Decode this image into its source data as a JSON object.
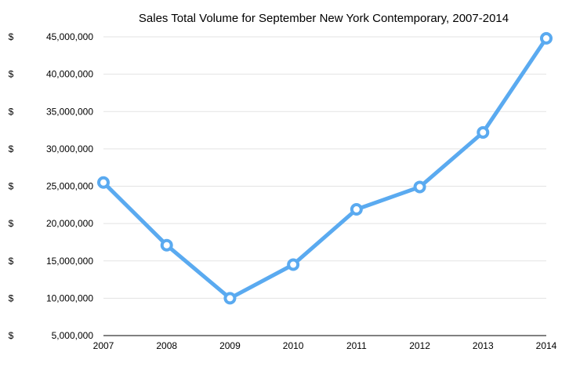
{
  "chart_data": {
    "type": "line",
    "title": "Sales Total Volume for September New York Contemporary, 2007-2014",
    "xlabel": "",
    "ylabel": "",
    "categories": [
      "2007",
      "2008",
      "2009",
      "2010",
      "2011",
      "2012",
      "2013",
      "2014"
    ],
    "series": [
      {
        "values": [
          25500000,
          17100000,
          10000000,
          14500000,
          21900000,
          24900000,
          32200000,
          44800000
        ]
      }
    ],
    "ylim": [
      5000000,
      45000000
    ],
    "yticks": [
      5000000,
      10000000,
      15000000,
      20000000,
      25000000,
      30000000,
      35000000,
      40000000,
      45000000
    ],
    "ytick_labels": [
      "5,000,000",
      "10,000,000",
      "15,000,000",
      "20,000,000",
      "25,000,000",
      "30,000,000",
      "35,000,000",
      "40,000,000",
      "45,000,000"
    ],
    "ytick_prefix": "$",
    "grid": true,
    "color": "#5aaaf0"
  }
}
